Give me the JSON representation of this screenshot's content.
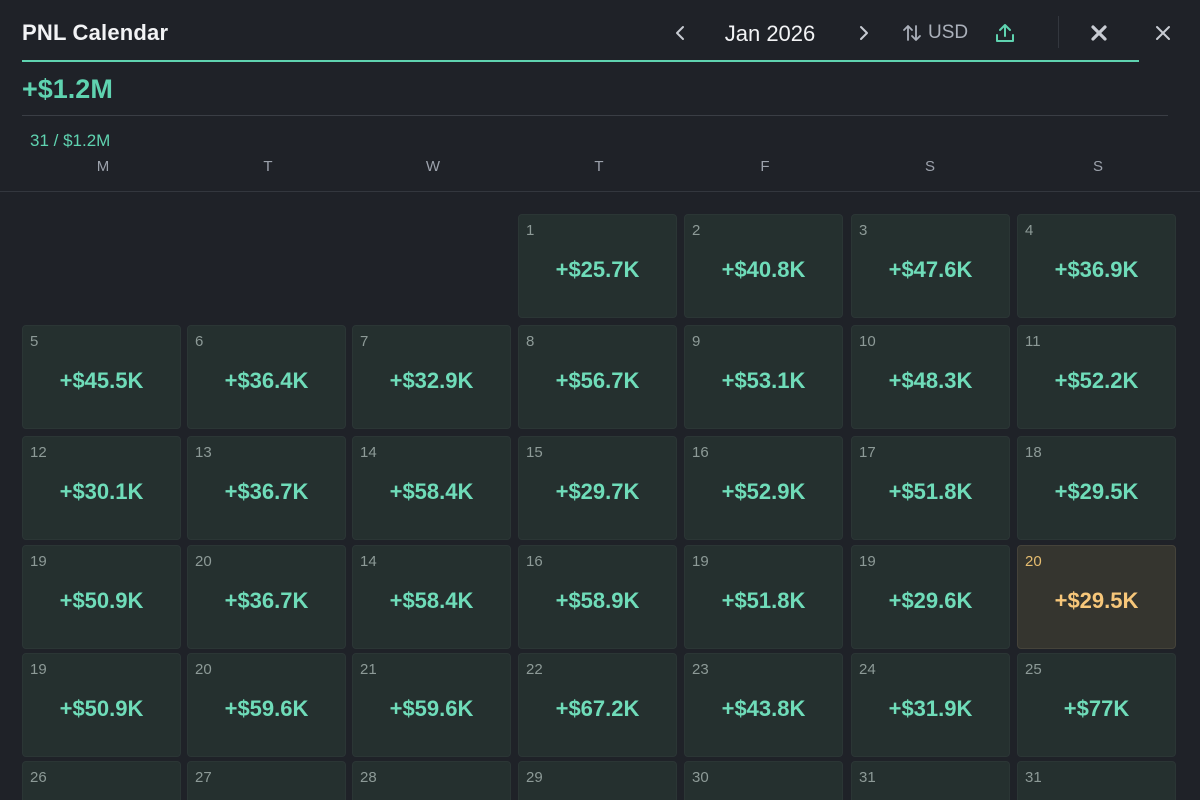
{
  "header": {
    "title": "PNL Calendar",
    "month": "Jan 2026",
    "currency": "USD"
  },
  "summary": {
    "total": "+$1.2M",
    "sub": "31 / $1.2M"
  },
  "weekdays": [
    "M",
    "T",
    "W",
    "T",
    "F",
    "S",
    "S"
  ],
  "weeks": [
    [
      null,
      null,
      null,
      {
        "day": "1",
        "value": "+$25.7K"
      },
      {
        "day": "2",
        "value": "+$40.8K"
      },
      {
        "day": "3",
        "value": "+$47.6K"
      },
      {
        "day": "4",
        "value": "+$36.9K"
      }
    ],
    [
      {
        "day": "5",
        "value": "+$45.5K"
      },
      {
        "day": "6",
        "value": "+$36.4K"
      },
      {
        "day": "7",
        "value": "+$32.9K"
      },
      {
        "day": "8",
        "value": "+$56.7K"
      },
      {
        "day": "9",
        "value": "+$53.1K"
      },
      {
        "day": "10",
        "value": "+$48.3K"
      },
      {
        "day": "11",
        "value": "+$52.2K"
      }
    ],
    [
      {
        "day": "12",
        "value": "+$30.1K"
      },
      {
        "day": "13",
        "value": "+$36.7K"
      },
      {
        "day": "14",
        "value": "+$58.4K"
      },
      {
        "day": "15",
        "value": "+$29.7K"
      },
      {
        "day": "16",
        "value": "+$52.9K"
      },
      {
        "day": "17",
        "value": "+$51.8K"
      },
      {
        "day": "18",
        "value": "+$29.5K"
      }
    ],
    [
      {
        "day": "19",
        "value": "+$50.9K"
      },
      {
        "day": "20",
        "value": "+$36.7K"
      },
      {
        "day": "14",
        "value": "+$58.4K"
      },
      {
        "day": "16",
        "value": "+$58.9K"
      },
      {
        "day": "19",
        "value": "+$51.8K"
      },
      {
        "day": "19",
        "value": "+$29.6K"
      },
      {
        "day": "20",
        "value": "+$29.5K",
        "highlight": true
      }
    ],
    [
      {
        "day": "19",
        "value": "+$50.9K"
      },
      {
        "day": "20",
        "value": "+$59.6K"
      },
      {
        "day": "21",
        "value": "+$59.6K"
      },
      {
        "day": "22",
        "value": "+$67.2K"
      },
      {
        "day": "23",
        "value": "+$43.8K"
      },
      {
        "day": "24",
        "value": "+$31.9K"
      },
      {
        "day": "25",
        "value": "+$77K"
      }
    ],
    [
      {
        "day": "26",
        "value": ""
      },
      {
        "day": "27",
        "value": ""
      },
      {
        "day": "28",
        "value": ""
      },
      {
        "day": "29",
        "value": ""
      },
      {
        "day": "30",
        "value": ""
      },
      {
        "day": "31",
        "value": ""
      },
      {
        "day": "31",
        "value": ""
      }
    ]
  ],
  "colors": {
    "accent": "#5fd3b0",
    "positive": "#6fdcb9",
    "highlight": "#f7c77a",
    "background": "#1f2228",
    "cell": "#25302f"
  },
  "icons": {
    "prev": "chevron-left-icon",
    "next": "chevron-right-icon",
    "currency": "swap-vertical-icon",
    "export": "upload-icon",
    "clear": "x-bold-icon",
    "close": "close-icon"
  }
}
